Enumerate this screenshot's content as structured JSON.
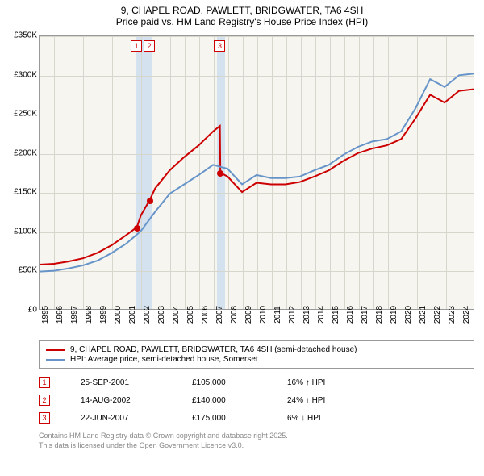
{
  "title_line1": "9, CHAPEL ROAD, PAWLETT, BRIDGWATER, TA6 4SH",
  "title_line2": "Price paid vs. HM Land Registry's House Price Index (HPI)",
  "chart": {
    "type": "line",
    "background_color": "#f6f5f0",
    "grid_color": "#d6d6cc",
    "xlim": [
      1995,
      2025
    ],
    "ylim": [
      0,
      350000
    ],
    "yticks": [
      0,
      50000,
      100000,
      150000,
      200000,
      250000,
      300000,
      350000
    ],
    "ytick_labels": [
      "£0",
      "£50K",
      "£100K",
      "£150K",
      "£200K",
      "£250K",
      "£300K",
      "£350K"
    ],
    "xticks": [
      1995,
      1996,
      1997,
      1998,
      1999,
      2000,
      2001,
      2002,
      2003,
      2004,
      2005,
      2006,
      2007,
      2008,
      2009,
      2010,
      2011,
      2012,
      2013,
      2014,
      2015,
      2016,
      2017,
      2018,
      2019,
      2020,
      2021,
      2022,
      2023,
      2024
    ],
    "band_color": "#d4e2ef",
    "bands": [
      [
        2001.6,
        2002.8
      ],
      [
        2007.2,
        2007.8
      ]
    ],
    "series": [
      {
        "name": "price_paid",
        "color": "#cc0000",
        "width": 2,
        "label": "9, CHAPEL ROAD, PAWLETT, BRIDGWATER, TA6 4SH (semi-detached house)",
        "x": [
          1995,
          1996,
          1997,
          1998,
          1999,
          2000,
          2001,
          2001.73,
          2002,
          2002.62,
          2003,
          2004,
          2005,
          2006,
          2007,
          2007.47,
          2007.5,
          2008,
          2009,
          2010,
          2011,
          2012,
          2013,
          2014,
          2015,
          2016,
          2017,
          2018,
          2019,
          2020,
          2021,
          2022,
          2023,
          2024,
          2025
        ],
        "y": [
          57000,
          58000,
          61000,
          65000,
          72000,
          82000,
          95000,
          105000,
          120000,
          140000,
          155000,
          178000,
          195000,
          210000,
          228000,
          235000,
          175000,
          170000,
          150000,
          162000,
          160000,
          160000,
          163000,
          170000,
          178000,
          190000,
          200000,
          206000,
          210000,
          218000,
          245000,
          275000,
          265000,
          280000,
          282000
        ]
      },
      {
        "name": "hpi",
        "color": "#6694c9",
        "width": 2,
        "label": "HPI: Average price, semi-detached house, Somerset",
        "x": [
          1995,
          1996,
          1997,
          1998,
          1999,
          2000,
          2001,
          2002,
          2003,
          2004,
          2005,
          2006,
          2007,
          2008,
          2009,
          2010,
          2011,
          2012,
          2013,
          2014,
          2015,
          2016,
          2017,
          2018,
          2019,
          2020,
          2021,
          2022,
          2023,
          2024,
          2025
        ],
        "y": [
          48000,
          49000,
          52000,
          56000,
          62000,
          72000,
          84000,
          100000,
          125000,
          148000,
          160000,
          172000,
          185000,
          180000,
          160000,
          172000,
          168000,
          168000,
          170000,
          178000,
          185000,
          198000,
          208000,
          215000,
          218000,
          228000,
          258000,
          295000,
          285000,
          300000,
          302000
        ]
      }
    ],
    "markers": [
      {
        "n": "1",
        "date": "25-SEP-2001",
        "price": "£105,000",
        "hpi": "16% ↑ HPI",
        "x": 2001.73,
        "y": 105000
      },
      {
        "n": "2",
        "date": "14-AUG-2002",
        "price": "£140,000",
        "hpi": "24% ↑ HPI",
        "x": 2002.62,
        "y": 140000
      },
      {
        "n": "3",
        "date": "22-JUN-2007",
        "price": "£175,000",
        "hpi": "6% ↓ HPI",
        "x": 2007.47,
        "y": 175000
      }
    ]
  },
  "footer_line1": "Contains HM Land Registry data © Crown copyright and database right 2025.",
  "footer_line2": "This data is licensed under the Open Government Licence v3.0."
}
